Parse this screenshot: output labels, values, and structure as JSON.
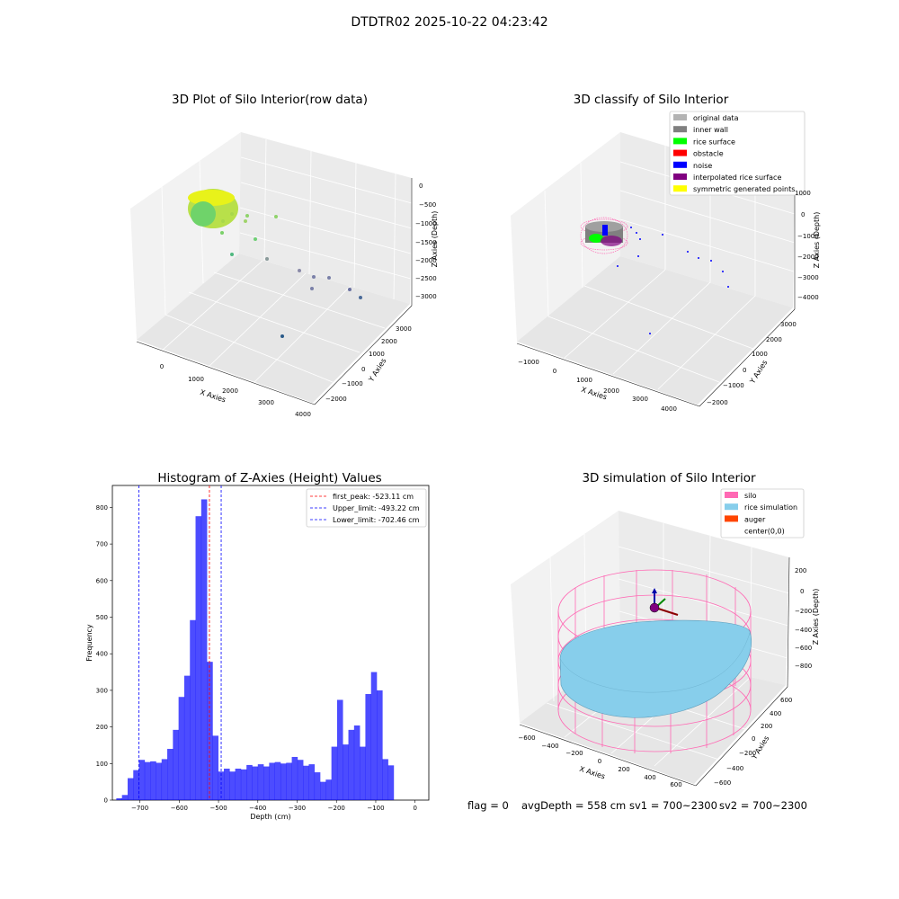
{
  "suptitle": "DTDTR02 2025-10-22 04:23:42",
  "panels": {
    "raw": {
      "title": "3D Plot of Silo Interior(row data)",
      "x_label": "X Axies",
      "y_label": "Y Axies",
      "z_label": "Z Axies (Depth)",
      "x_ticks": [
        "0",
        "1000",
        "2000",
        "3000",
        "4000"
      ],
      "y_ticks": [
        "3000",
        "2000",
        "1000",
        "0",
        "−1000",
        "−2000"
      ],
      "z_ticks": [
        "0",
        "−500",
        "−1000",
        "−1500",
        "−2000",
        "−2500",
        "−3000"
      ]
    },
    "classify": {
      "title": "3D classify of Silo Interior",
      "x_label": "X Axies",
      "y_label": "Y Axies",
      "z_label": "Z Axies (Depth)",
      "x_ticks": [
        "−1000",
        "0",
        "1000",
        "2000",
        "3000",
        "4000"
      ],
      "y_ticks": [
        "3000",
        "2000",
        "1000",
        "0",
        "−1000",
        "−2000"
      ],
      "z_ticks": [
        "1000",
        "0",
        "−1000",
        "−2000",
        "−3000",
        "−4000"
      ],
      "legend": [
        {
          "label": "original data",
          "color": "#b3b3b3"
        },
        {
          "label": "inner wall",
          "color": "#808080"
        },
        {
          "label": "rice surface",
          "color": "#00ff00"
        },
        {
          "label": "obstacle",
          "color": "#ff0000"
        },
        {
          "label": "noise",
          "color": "#0000ff"
        },
        {
          "label": "interpolated rice surface",
          "color": "#800080"
        },
        {
          "label": "symmetric generated points",
          "color": "#ffff00"
        }
      ]
    },
    "simulation": {
      "title": "3D simulation of Silo Interior",
      "x_label": "X Axies",
      "y_label": "Y Axies",
      "z_label": "Z Axies (Depth)",
      "x_ticks": [
        "−600",
        "−400",
        "−200",
        "0",
        "200",
        "400",
        "600"
      ],
      "y_ticks": [
        "600",
        "400",
        "200",
        "0",
        "−200",
        "−400",
        "−600"
      ],
      "z_ticks": [
        "200",
        "0",
        "−200",
        "−400",
        "−600",
        "−800"
      ],
      "legend": [
        {
          "label": "silo",
          "color": "#ff69b4"
        },
        {
          "label": "rice simulation",
          "color": "#87ceeb"
        },
        {
          "label": "auger",
          "color": "#ff4500"
        },
        {
          "label": "center(0,0)",
          "color": ""
        }
      ]
    }
  },
  "chart_data": {
    "type": "bar",
    "title": "Histogram of Z-Axies (Height) Values",
    "xlabel": "Depth (cm)",
    "ylabel": "Frequency",
    "xlim": [
      -770,
      35
    ],
    "ylim": [
      0,
      860
    ],
    "x_ticks": [
      -700,
      -600,
      -500,
      -400,
      -300,
      -200,
      -100,
      0
    ],
    "y_ticks": [
      0,
      100,
      200,
      300,
      400,
      500,
      600,
      700,
      800
    ],
    "bar_color": "#0000ff",
    "bin_start": -760,
    "bin_width": 14.4,
    "values": [
      5,
      14,
      60,
      82,
      110,
      104,
      106,
      102,
      112,
      140,
      192,
      282,
      340,
      492,
      776,
      822,
      378,
      176,
      78,
      86,
      78,
      86,
      84,
      96,
      92,
      98,
      92,
      102,
      104,
      100,
      102,
      118,
      110,
      94,
      98,
      76,
      50,
      56,
      146,
      274,
      152,
      192,
      204,
      146,
      290,
      350,
      300,
      112,
      95
    ],
    "lines": [
      {
        "name": "first_peak: -523.11 cm",
        "x": -523.11,
        "color": "#ff0000"
      },
      {
        "name": "Upper_limit: -493.22 cm",
        "x": -493.22,
        "color": "#0000ff"
      },
      {
        "name": "Lower_limit: -702.46 cm",
        "x": -702.46,
        "color": "#0000ff"
      }
    ]
  },
  "status": {
    "flag": "flag = 0",
    "avg": "avgDepth = 558 cm",
    "sv1": "sv1 = 700~2300",
    "sv2": "sv2 = 700~2300"
  }
}
